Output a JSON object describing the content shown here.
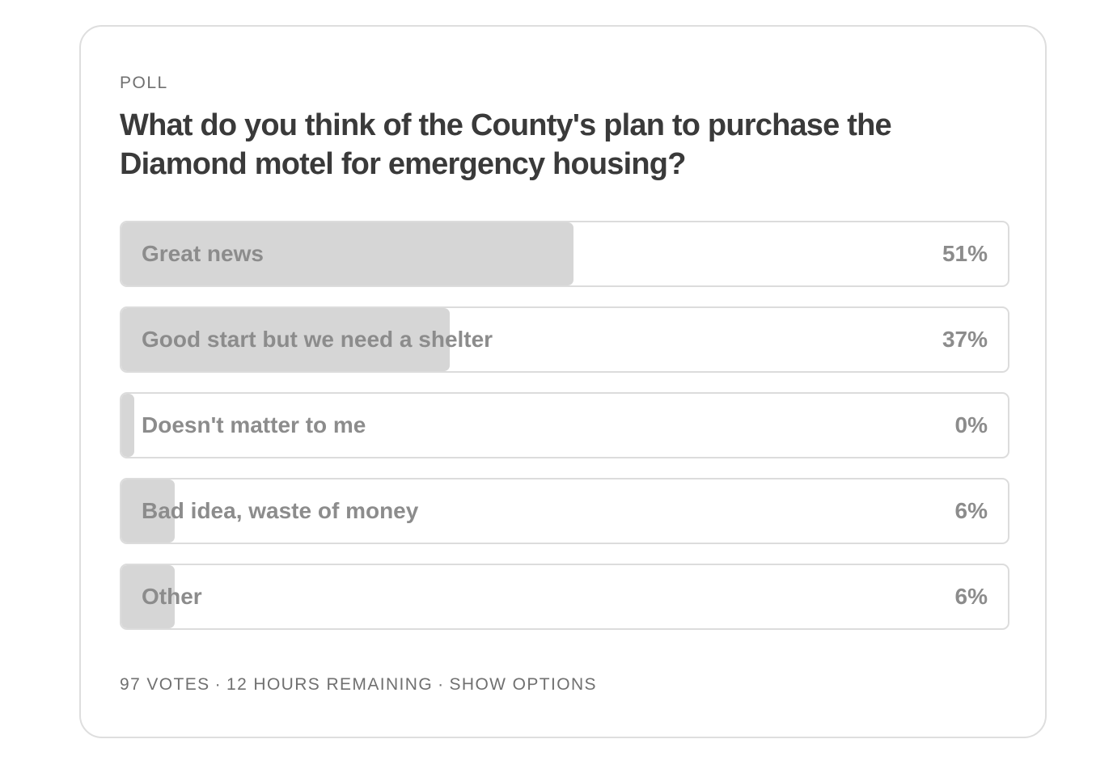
{
  "poll": {
    "kicker": "POLL",
    "question": "What do you think of the County's plan to purchase the Diamond motel for emergency housing?",
    "options": [
      {
        "label": "Great news",
        "percent_label": "51%",
        "percent": 51
      },
      {
        "label": "Good start but we need a shelter",
        "percent_label": "37%",
        "percent": 37
      },
      {
        "label": "Doesn't matter to me",
        "percent_label": "0%",
        "percent": 0
      },
      {
        "label": "Bad idea, waste of money",
        "percent_label": "6%",
        "percent": 6
      },
      {
        "label": "Other",
        "percent_label": "6%",
        "percent": 6
      }
    ],
    "footer": {
      "votes": "97 VOTES",
      "separator": "·",
      "remaining": "12 HOURS REMAINING",
      "show_options": "SHOW OPTIONS"
    }
  },
  "colors": {
    "fill": "#d6d6d6",
    "border": "#dcdcdc",
    "option_text": "#8c8c8c",
    "question_text": "#3a3a3a"
  }
}
